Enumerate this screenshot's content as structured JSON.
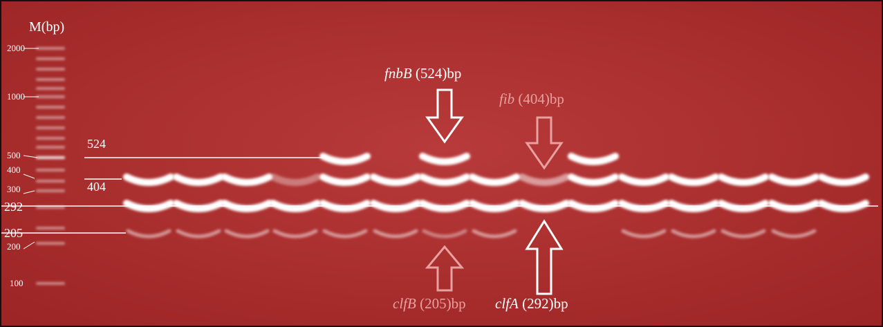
{
  "ladder": {
    "title": "M(bp)",
    "labels": [
      "2000",
      "1000",
      "500",
      "400",
      "300",
      "200",
      "100"
    ]
  },
  "markers": [
    "524",
    "404",
    "292",
    "205"
  ],
  "annotations": [
    {
      "gene": "fnbB",
      "size": "(524)bp"
    },
    {
      "gene": "fib",
      "size": "(404)bp"
    },
    {
      "gene": "clfB",
      "size": "(205)bp"
    },
    {
      "gene": "clfA",
      "size": "(292)bp"
    }
  ]
}
